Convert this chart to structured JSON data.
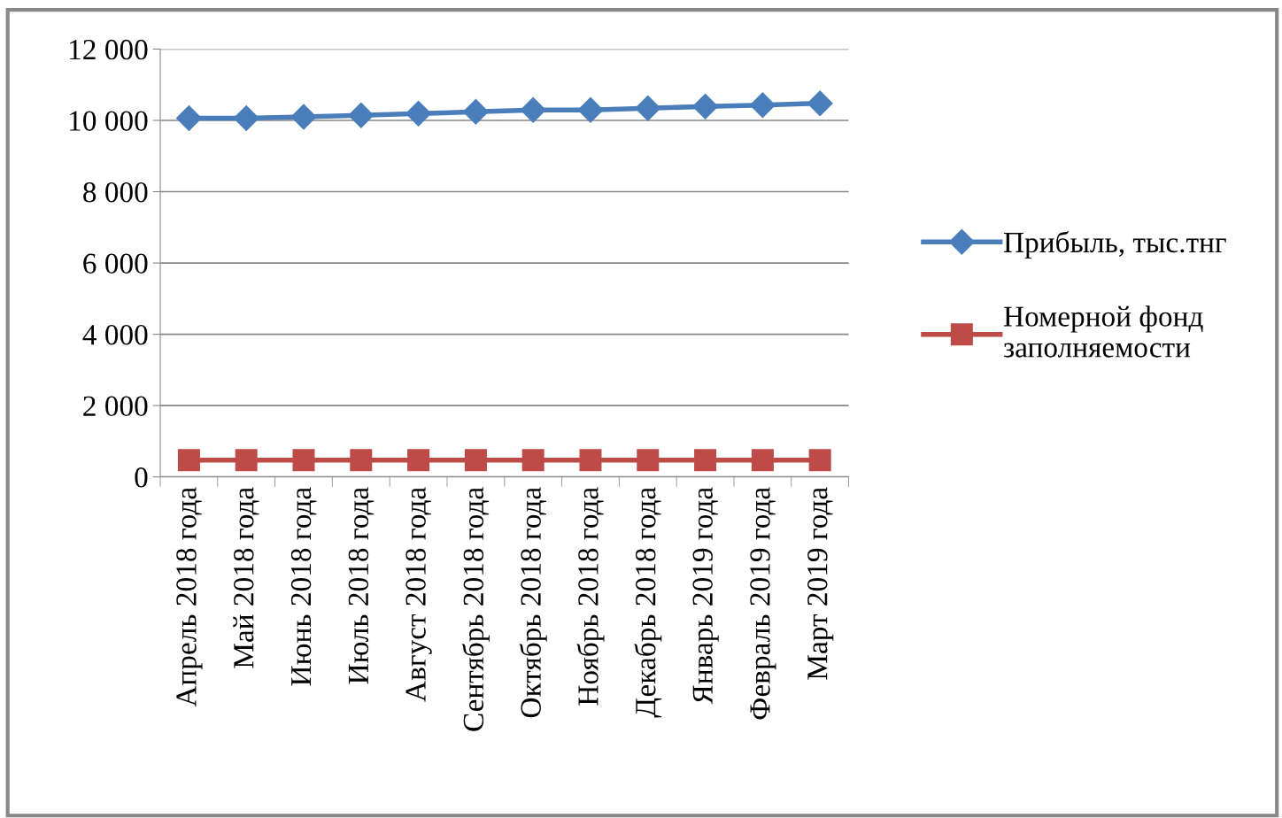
{
  "chart_data": {
    "type": "line",
    "categories": [
      "Апрель 2018 года",
      "Май 2018 года",
      "Июнь 2018 года",
      "Июль 2018 года",
      "Август 2018 года",
      "Сентябрь 2018 года",
      "Октябрь 2018 года",
      "Ноябрь 2018 года",
      "Декабрь 2018 года",
      "Январь 2019 года",
      "Февраль 2019 года",
      "Март 2019 года"
    ],
    "series": [
      {
        "name": "Прибыль, тыс.тнг",
        "color": "#4a7ebb",
        "marker": "diamond",
        "values": [
          10060,
          10060,
          10100,
          10140,
          10190,
          10240,
          10290,
          10290,
          10340,
          10390,
          10430,
          10480
        ]
      },
      {
        "name": "Номерной фонд заполняемости",
        "color": "#be4b48",
        "marker": "square",
        "values": [
          470,
          470,
          470,
          470,
          470,
          470,
          470,
          470,
          470,
          470,
          470,
          470
        ]
      }
    ],
    "ylim": [
      0,
      12000
    ],
    "yticks": [
      {
        "value": 0,
        "label": "0"
      },
      {
        "value": 2000,
        "label": "2 000"
      },
      {
        "value": 4000,
        "label": "4 000"
      },
      {
        "value": 6000,
        "label": "6 000"
      },
      {
        "value": 8000,
        "label": "8 000"
      },
      {
        "value": 10000,
        "label": "10 000"
      },
      {
        "value": 12000,
        "label": "12 000"
      }
    ],
    "grid": "y",
    "legend": "right",
    "line_style": "solid"
  }
}
